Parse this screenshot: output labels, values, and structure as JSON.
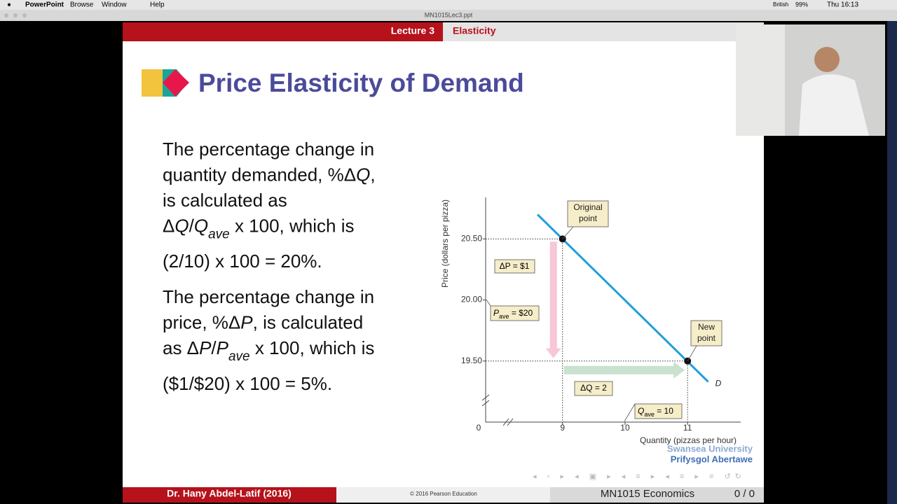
{
  "menubar": {
    "app": "PowerPoint",
    "items": [
      "Browse",
      "Window",
      "Help"
    ],
    "language": "British",
    "battery": "99%",
    "clock": "Thu 16:13"
  },
  "window": {
    "title": "MN1015Lec3.ppt"
  },
  "header": {
    "lecture": "Lecture 3",
    "topic": "Elasticity"
  },
  "title": "Price Elasticity of Demand",
  "body": [
    [
      [
        {
          "text": "The percentage change in"
        }
      ],
      [
        {
          "text": "quantity demanded, %Δ"
        },
        {
          "text": "Q",
          "italic": true
        },
        {
          "text": ","
        }
      ],
      [
        {
          "text": "is calculated as"
        }
      ],
      [
        {
          "text": "Δ"
        },
        {
          "text": "Q",
          "italic": true
        },
        {
          "text": "/"
        },
        {
          "text": "Q",
          "italic": true
        },
        {
          "text": "ave",
          "italic": true,
          "sub": true
        },
        {
          "text": " x 100, which is"
        }
      ]
    ],
    [
      [
        {
          "text": "(2/10) x 100 = 20%."
        }
      ]
    ],
    [
      [
        {
          "text": "The percentage change in"
        }
      ],
      [
        {
          "text": "price, %Δ"
        },
        {
          "text": "P",
          "italic": true
        },
        {
          "text": ", is calculated"
        }
      ],
      [
        {
          "text": "as Δ"
        },
        {
          "text": "P",
          "italic": true
        },
        {
          "text": "/"
        },
        {
          "text": "P",
          "italic": true
        },
        {
          "text": "ave",
          "italic": true,
          "sub": true
        },
        {
          "text": " x 100, which is"
        }
      ]
    ],
    [
      [
        {
          "text": " ($1/$20) x 100 = 5%."
        }
      ]
    ]
  ],
  "chart_data": {
    "type": "line",
    "x_label": "Quantity (pizzas per hour)",
    "y_label": "Price (dollars per pizza)",
    "origin_label": "0",
    "xlim": [
      7.77,
      11.85
    ],
    "ylim": [
      19.0,
      20.84
    ],
    "xticks": [
      9,
      10,
      11
    ],
    "yticks": [
      {
        "value": 19.5,
        "label": "19.50"
      },
      {
        "value": 20,
        "label": "20.00"
      },
      {
        "value": 20.5,
        "label": "20.50"
      }
    ],
    "series": [
      {
        "name": "D",
        "color": "#1e9fdc",
        "x": [
          8.6,
          11.33
        ],
        "values": [
          20.7,
          19.33
        ]
      }
    ],
    "points": {
      "x": [
        9,
        11
      ],
      "values": [
        20.5,
        19.5
      ],
      "labels": [
        [
          "Original",
          "point"
        ],
        [
          "New",
          "point"
        ]
      ]
    },
    "annotations": {
      "delta_p": "ΔP = $1",
      "p_ave": {
        "main": "P",
        "sub": "ave",
        "rest": " = $20"
      },
      "delta_q": "ΔQ = 2",
      "q_ave": {
        "main": "Q",
        "sub": "ave",
        "rest": " = 10"
      }
    }
  },
  "university": [
    "Swansea University",
    "Prifysgol Abertawe"
  ],
  "footer": {
    "author": "Dr. Hany Abdel-Latif (2016)",
    "copyright": "© 2016 Pearson Education",
    "course": "MN1015 Economics",
    "page": "0 / 0"
  }
}
